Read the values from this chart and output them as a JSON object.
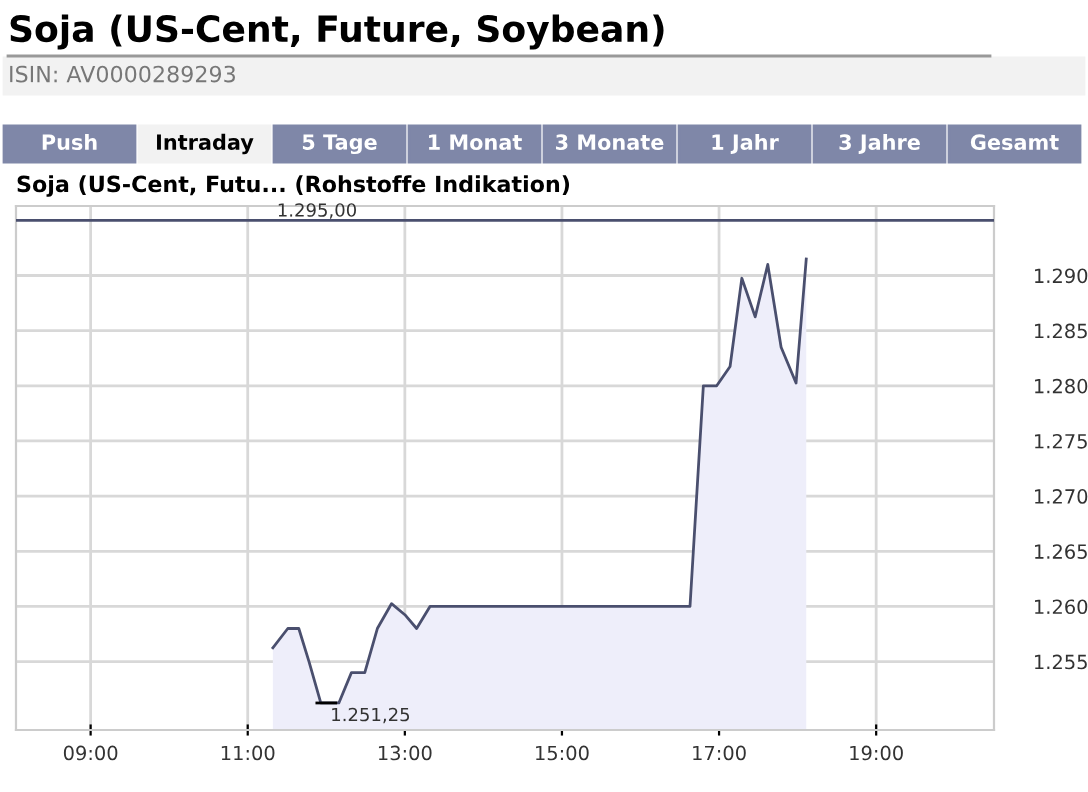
{
  "chart_data": {
    "type": "area",
    "title": "Soja (US-Cent, Future, Soybean)",
    "subtitle": "ISIN: AV0000289293",
    "annotations": [
      "Push",
      "Intraday",
      "5 Tage",
      "1 Monat",
      "3 Monate",
      "1 Jahr",
      "3 Jahre",
      "Gesamt",
      "Soja (US-Cent, Futu... (Rohstoffe Indikation)",
      {
        "text": "1.251,25",
        "x": 12.0,
        "y": 1251.25
      }
    ],
    "series": [
      {
        "color": "#4a4f6e",
        "x": [
          11.32,
          11.51,
          11.65,
          11.78,
          11.93,
          12.16,
          12.32,
          12.49,
          12.65,
          12.83,
          13.0,
          13.15,
          13.32,
          16.63,
          16.8,
          16.97,
          17.14,
          17.29,
          17.46,
          17.62,
          17.79,
          17.98,
          18.11
        ],
        "values": [
          1256.25,
          1258.0,
          1258.0,
          1255.0,
          1251.25,
          1251.25,
          1254.0,
          1254.0,
          1258.0,
          1260.25,
          1259.25,
          1258.0,
          1260.0,
          1260.0,
          1280.0,
          1280.0,
          1281.75,
          1289.75,
          1286.25,
          1291.0,
          1283.5,
          1280.25,
          1291.5
        ]
      }
    ],
    "xlim": [
      8.05,
      20.5
    ],
    "xticks": [
      {
        "value": 9,
        "label": "09:00"
      },
      {
        "value": 11,
        "label": "11:00"
      },
      {
        "value": 13,
        "label": "13:00"
      },
      {
        "value": 15,
        "label": "15:00"
      },
      {
        "value": 17,
        "label": "17:00"
      },
      {
        "value": 19,
        "label": "19:00"
      }
    ],
    "ylim": [
      1248.8,
      1296.3
    ],
    "yticks": [
      {
        "value": 1255,
        "label": "1.255"
      },
      {
        "value": 1260,
        "label": "1.260"
      },
      {
        "value": 1265,
        "label": "1.265"
      },
      {
        "value": 1270,
        "label": "1.270"
      },
      {
        "value": 1275,
        "label": "1.275"
      },
      {
        "value": 1280,
        "label": "1.280"
      },
      {
        "value": 1285,
        "label": "1.285"
      },
      {
        "value": 1290,
        "label": "1.290"
      }
    ],
    "ref_lines": [
      {
        "axis": "y",
        "value": 1295.0,
        "label": "1.295,00",
        "color": "#4a4f6e"
      }
    ],
    "grid": true,
    "legend": false
  }
}
